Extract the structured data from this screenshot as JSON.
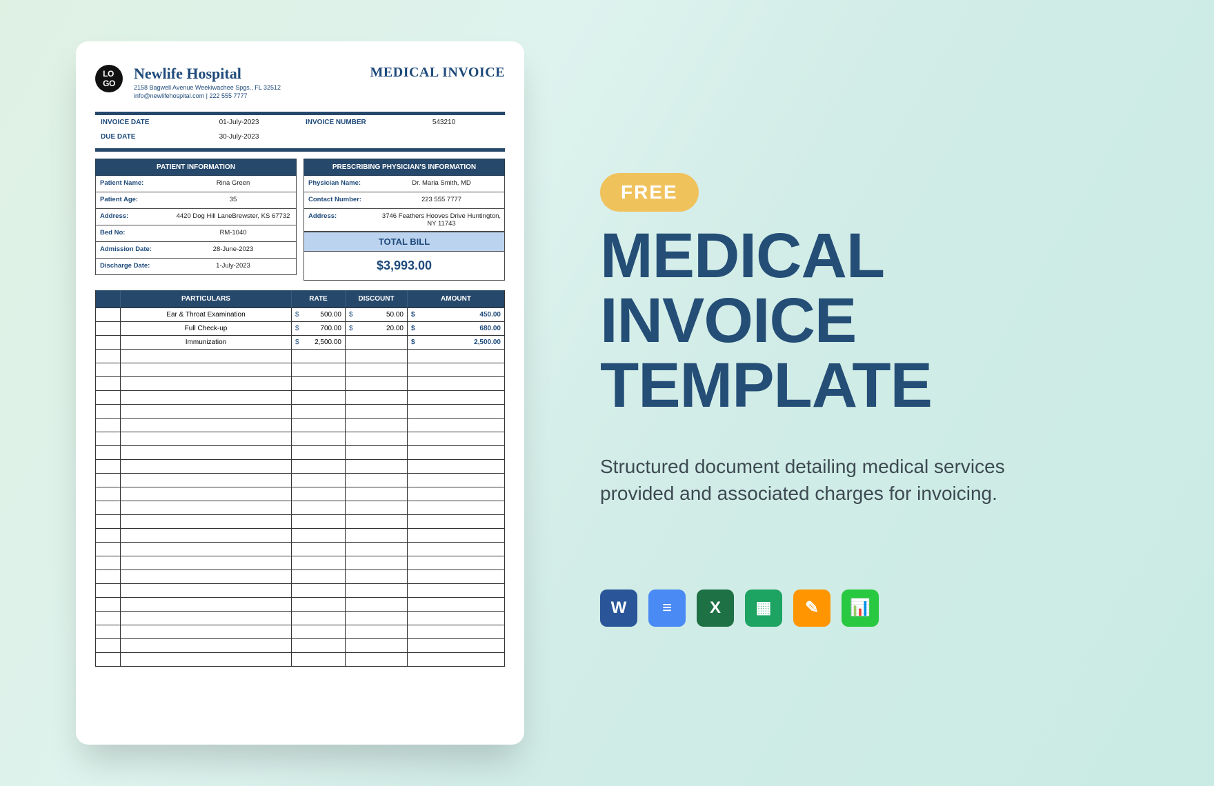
{
  "doc": {
    "logo_text": "LO\nGO",
    "hospital_name": "Newlife Hospital",
    "address_line": "2158 Bagwell Avenue Weekiwachee Spgs., FL 32512",
    "contact_line": "info@newlifehospital.com | 222 555 7777",
    "title": "MEDICAL INVOICE",
    "meta": {
      "invoice_date_label": "INVOICE DATE",
      "invoice_date": "01-July-2023",
      "invoice_number_label": "INVOICE NUMBER",
      "invoice_number": "543210",
      "due_date_label": "DUE DATE",
      "due_date": "30-July-2023"
    },
    "patient_panel": {
      "title": "PATIENT INFORMATION",
      "rows": [
        {
          "label": "Patient Name:",
          "value": "Rina Green"
        },
        {
          "label": "Patient Age:",
          "value": "35"
        },
        {
          "label": "Address:",
          "value": "4420 Dog Hill LaneBrewster, KS 67732"
        },
        {
          "label": "Bed No:",
          "value": "RM-1040"
        },
        {
          "label": "Admission Date:",
          "value": "28-June-2023"
        },
        {
          "label": "Discharge Date:",
          "value": "1-July-2023"
        }
      ]
    },
    "physician_panel": {
      "title": "PRESCRIBING PHYSICIAN'S INFORMATION",
      "rows": [
        {
          "label": "Physician Name:",
          "value": "Dr. Maria Smith, MD"
        },
        {
          "label": "Contact Number:",
          "value": "223 555 7777"
        },
        {
          "label": "Address:",
          "value": "3746 Feathers Hooves Drive Huntington, NY 11743"
        }
      ],
      "total_bill_label": "TOTAL BILL",
      "total_bill_value": "$3,993.00"
    },
    "items_table": {
      "headers": {
        "particulars": "PARTICULARS",
        "rate": "RATE",
        "discount": "DISCOUNT",
        "amount": "AMOUNT"
      },
      "rows": [
        {
          "name": "Ear & Throat Examination",
          "rate": "500.00",
          "discount": "50.00",
          "amount": "450.00"
        },
        {
          "name": "Full Check-up",
          "rate": "700.00",
          "discount": "20.00",
          "amount": "680.00"
        },
        {
          "name": "Immunization",
          "rate": "2,500.00",
          "discount": "",
          "amount": "2,500.00"
        }
      ],
      "empty_rows": 23,
      "currency": "$"
    },
    "colors": {
      "brand_navy": "#26486b",
      "brand_text": "#1e4a7a",
      "total_bg": "#bcd3ef"
    }
  },
  "promo": {
    "badge": "FREE",
    "title_line1": "MEDICAL",
    "title_line2": "INVOICE",
    "title_line3": "TEMPLATE",
    "description": "Structured document detailing medical services provided and associated charges for invoicing.",
    "apps": [
      {
        "name": "word",
        "label": "W",
        "bg": "#2a5699"
      },
      {
        "name": "docs",
        "label": "≡",
        "bg": "#4a8af4"
      },
      {
        "name": "excel",
        "label": "X",
        "bg": "#1e7045"
      },
      {
        "name": "sheets",
        "label": "▦",
        "bg": "#1da362"
      },
      {
        "name": "pages",
        "label": "✎",
        "bg": "#ff9500"
      },
      {
        "name": "numbers",
        "label": "📊",
        "bg": "#28c840"
      }
    ]
  }
}
